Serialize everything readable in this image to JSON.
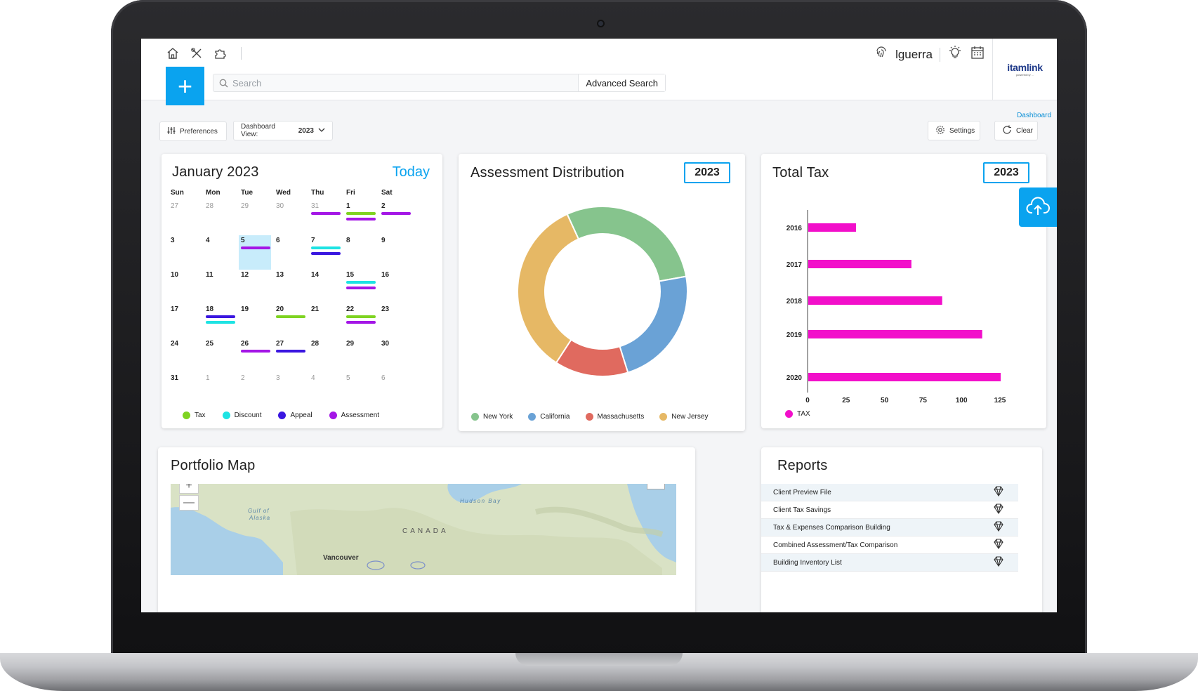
{
  "topbar": {
    "icons": [
      "home-icon",
      "tools-icon",
      "puzzle-icon"
    ],
    "username": "lguerra"
  },
  "brand": {
    "name": "itamlink",
    "sub": "powered by ..."
  },
  "search": {
    "placeholder": "Search",
    "advanced_label": "Advanced Search",
    "add_label": "+"
  },
  "breadcrumb": "Dashboard",
  "toolbar": {
    "preferences_label": "Preferences",
    "dashboard_view_label": "Dashboard View:",
    "dashboard_view_value": "2023",
    "settings_label": "Settings",
    "clear_label": "Clear"
  },
  "calendar": {
    "title": "January 2023",
    "today_label": "Today",
    "weekdays": [
      "Sun",
      "Mon",
      "Tue",
      "Wed",
      "Thu",
      "Fri",
      "Sat"
    ],
    "weeks": [
      [
        {
          "d": "27",
          "m": true
        },
        {
          "d": "28",
          "m": true
        },
        {
          "d": "29",
          "m": true
        },
        {
          "d": "30",
          "m": true
        },
        {
          "d": "31",
          "m": true,
          "ev": [
            "assessment"
          ]
        },
        {
          "d": "1",
          "ev": [
            "tax",
            "assessment"
          ]
        },
        {
          "d": "2",
          "ev": [
            "assessment"
          ]
        }
      ],
      [
        {
          "d": "3"
        },
        {
          "d": "4"
        },
        {
          "d": "5",
          "sel": true,
          "ev": [
            "assessment"
          ]
        },
        {
          "d": "6"
        },
        {
          "d": "7",
          "ev": [
            "discount",
            "appeal"
          ]
        },
        {
          "d": "8"
        },
        {
          "d": "9"
        }
      ],
      [
        {
          "d": "10"
        },
        {
          "d": "11"
        },
        {
          "d": "12"
        },
        {
          "d": "13"
        },
        {
          "d": "14"
        },
        {
          "d": "15",
          "ev": [
            "discount",
            "assessment"
          ]
        },
        {
          "d": "16"
        }
      ],
      [
        {
          "d": "17"
        },
        {
          "d": "18",
          "ev": [
            "appeal",
            "discount"
          ]
        },
        {
          "d": "19"
        },
        {
          "d": "20",
          "ev": [
            "tax"
          ]
        },
        {
          "d": "21"
        },
        {
          "d": "22",
          "ev": [
            "tax",
            "assessment"
          ]
        },
        {
          "d": "23"
        }
      ],
      [
        {
          "d": "24"
        },
        {
          "d": "25"
        },
        {
          "d": "26",
          "ev": [
            "assessment"
          ]
        },
        {
          "d": "27",
          "ev": [
            "appeal"
          ]
        },
        {
          "d": "28"
        },
        {
          "d": "29"
        },
        {
          "d": "30"
        }
      ],
      [
        {
          "d": "31"
        },
        {
          "d": "1",
          "m": true
        },
        {
          "d": "2",
          "m": true
        },
        {
          "d": "3",
          "m": true
        },
        {
          "d": "4",
          "m": true
        },
        {
          "d": "5",
          "m": true
        },
        {
          "d": "6",
          "m": true
        }
      ]
    ],
    "legend": [
      {
        "key": "tax",
        "label": "Tax",
        "color": "#7ed321"
      },
      {
        "key": "discount",
        "label": "Discount",
        "color": "#1ee3e3"
      },
      {
        "key": "appeal",
        "label": "Appeal",
        "color": "#3a16e0"
      },
      {
        "key": "assessment",
        "label": "Assessment",
        "color": "#a416e6"
      }
    ]
  },
  "assessment": {
    "title": "Assessment Distribution",
    "year": "2023",
    "chart_data": {
      "type": "pie",
      "donut": true,
      "categories": [
        "New York",
        "California",
        "Massachusetts",
        "New Jersey"
      ],
      "values": [
        29,
        23,
        14,
        34
      ],
      "colors": [
        "#86c48d",
        "#6aa2d6",
        "#e06a5f",
        "#e6b865"
      ]
    }
  },
  "total_tax": {
    "title": "Total Tax",
    "year": "2023",
    "chart_data": {
      "type": "bar",
      "orientation": "horizontal",
      "categories": [
        "2016",
        "2017",
        "2018",
        "2019",
        "2020"
      ],
      "series": [
        {
          "name": "TAX",
          "values": [
            31,
            67,
            87,
            113,
            125
          ],
          "color": "#f20fca"
        }
      ],
      "xlim": [
        0,
        125
      ],
      "xticks": [
        "0",
        "25",
        "50",
        "75",
        "100",
        "125"
      ]
    }
  },
  "map": {
    "title": "Portfolio Map",
    "labels": {
      "gulf": "Gulf of",
      "alaska": "Alaska",
      "hudson": "Hudson Bay",
      "canada": "CANADA",
      "vancouver": "Vancouver"
    },
    "zoom_in": "+",
    "zoom_out": "—"
  },
  "reports": {
    "title": "Reports",
    "items": [
      "Client Preview File",
      "Client Tax Savings",
      "Tax & Expenses Comparison Building",
      "Combined Assessment/Tax Comparison",
      "Building Inventory List"
    ]
  }
}
